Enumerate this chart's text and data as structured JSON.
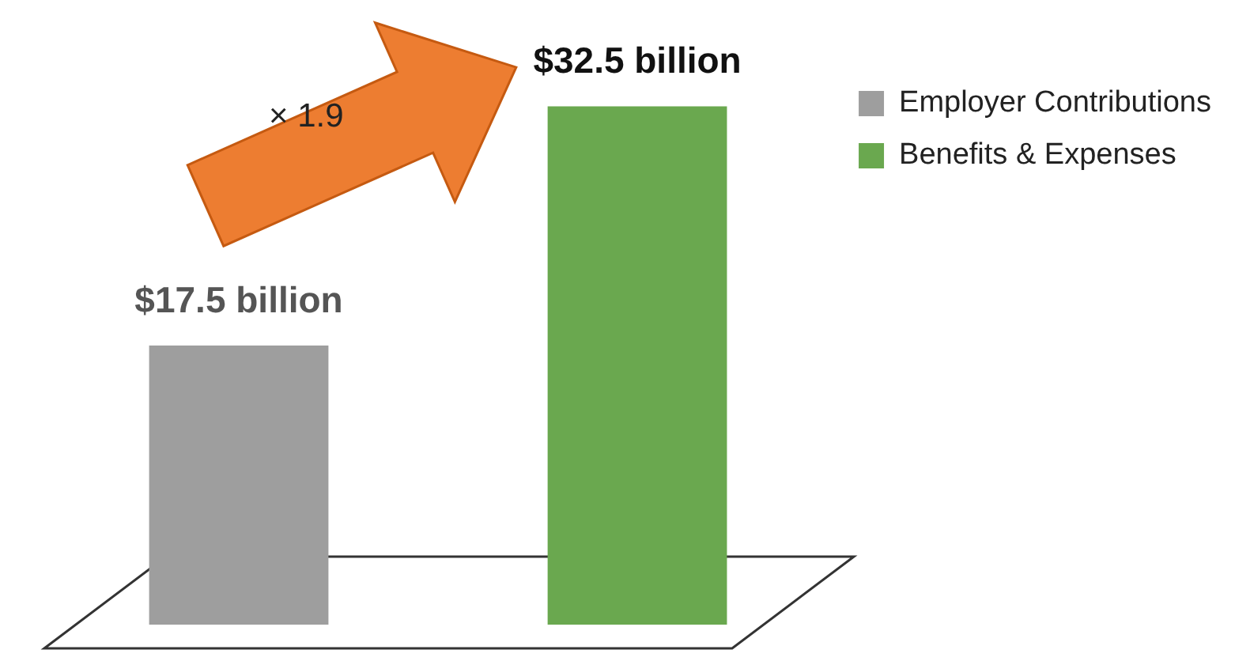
{
  "chart_data": {
    "type": "bar",
    "categories": [
      null,
      null
    ],
    "stacked": true,
    "series": [
      {
        "name": "Employer Contributions",
        "color": "#9e9e9e",
        "values": [
          17.5,
          null
        ],
        "value_labels": [
          "$17.5 billion",
          null
        ]
      },
      {
        "name": "Benefits & Expenses",
        "color": "#6aa84f",
        "values": [
          null,
          32.5
        ],
        "value_labels": [
          null,
          "$32.5 billion"
        ]
      }
    ],
    "annotations": [
      "× 1.9"
    ],
    "legend": "right",
    "tick_labels": false
  }
}
